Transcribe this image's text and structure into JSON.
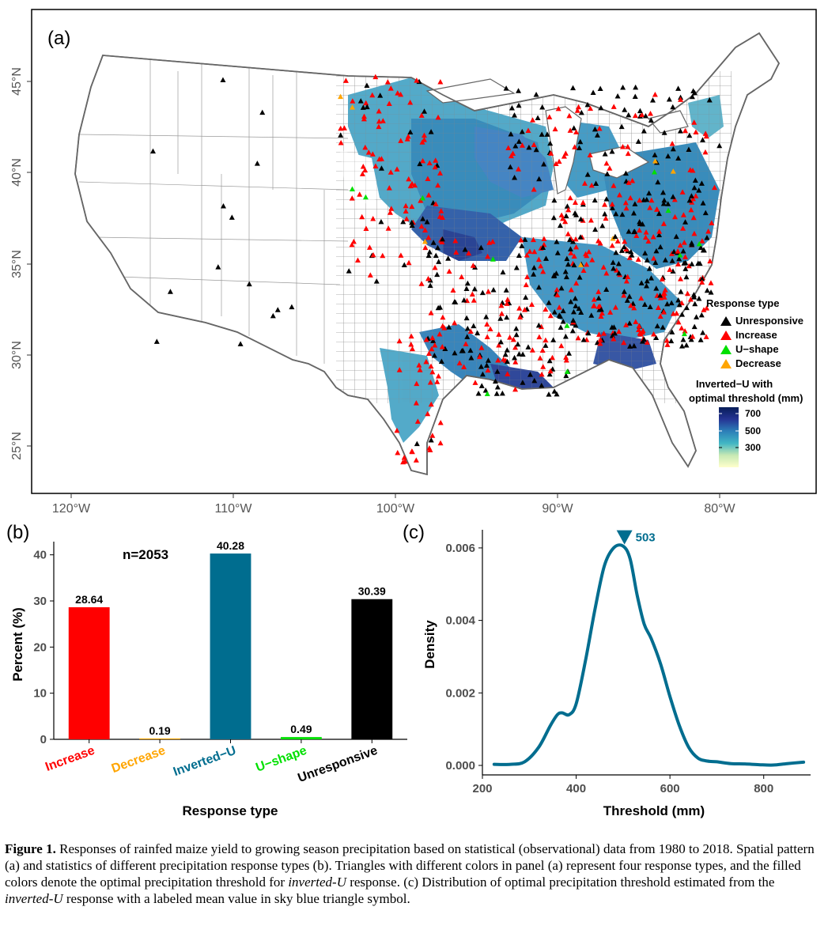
{
  "panel_a": {
    "panel_label": "(a)",
    "lon_ticks": [
      "120°W",
      "110°W",
      "100°W",
      "90°W",
      "80°W"
    ],
    "lat_ticks": [
      "45°N",
      "40°N",
      "35°N",
      "30°N",
      "25°N"
    ],
    "legend_response": {
      "title": "Response type",
      "items": [
        {
          "label": "Unresponsive",
          "color": "#000000"
        },
        {
          "label": "Increase",
          "color": "#ff0000"
        },
        {
          "label": "U−shape",
          "color": "#00e000"
        },
        {
          "label": "Decrease",
          "color": "#ffa500"
        }
      ]
    },
    "legend_threshold": {
      "title_line1": "Inverted−U with",
      "title_line2": "optimal threshold (mm)",
      "ticks": [
        "700",
        "500",
        "300"
      ],
      "colors": [
        "#ffffcc",
        "#a1dab4",
        "#41b6c4",
        "#2c7fb8",
        "#253494",
        "#081d58"
      ]
    }
  },
  "chart_data": [
    {
      "type": "bar",
      "panel_label": "(b)",
      "annotation": "n=2053",
      "categories": [
        "Increase",
        "Decrease",
        "Inverted−U",
        "U−shape",
        "Unresponsive"
      ],
      "values": [
        28.64,
        0.19,
        40.28,
        0.49,
        30.39
      ],
      "value_labels": [
        "28.64",
        "0.19",
        "40.28",
        "0.49",
        "30.39"
      ],
      "colors": [
        "#ff0000",
        "#ffa500",
        "#006d8f",
        "#00e000",
        "#000000"
      ],
      "xlabel": "Response type",
      "ylabel": "Percent (%)",
      "ylim": [
        0,
        42
      ],
      "yticks": [
        0,
        10,
        20,
        30,
        40
      ]
    },
    {
      "type": "line",
      "panel_label": "(c)",
      "xlabel": "Threshold (mm)",
      "ylabel": "Density",
      "xlim": [
        200,
        900
      ],
      "ylim": [
        0,
        0.0065
      ],
      "xticks": [
        200,
        400,
        600,
        800
      ],
      "yticks": [
        "0.000",
        "0.002",
        "0.004",
        "0.006"
      ],
      "line_color": "#006d8f",
      "mean_label": "503",
      "mean_value": 503,
      "x": [
        225,
        260,
        290,
        320,
        345,
        360,
        370,
        385,
        400,
        420,
        440,
        460,
        480,
        500,
        515,
        530,
        545,
        560,
        580,
        600,
        620,
        640,
        660,
        680,
        700,
        730,
        760,
        790,
        820,
        850,
        885
      ],
      "y": [
        3e-05,
        3e-05,
        0.0001,
        0.0005,
        0.0011,
        0.0014,
        0.00145,
        0.0014,
        0.0017,
        0.0029,
        0.0043,
        0.0055,
        0.006,
        0.00605,
        0.0057,
        0.0047,
        0.0039,
        0.0035,
        0.0028,
        0.0019,
        0.0011,
        0.0005,
        0.0002,
        0.00012,
        0.0001,
        5e-05,
        4e-05,
        2e-05,
        1e-05,
        5e-05,
        9e-05
      ]
    }
  ],
  "caption": {
    "fig_label": "Figure 1.",
    "text_1": " Responses of rainfed maize yield to growing season precipitation based on statistical (observational) data from 1980 to 2018. Spatial pattern (a) and statistics of different precipitation response types (b). Triangles with different colors in panel (a) represent four response types, and the filled colors denote the optimal precipitation threshold for ",
    "italic_1": "inverted-U",
    "text_2": " response. (c) Distribution of optimal precipitation threshold estimated from the ",
    "italic_2": "inverted-U",
    "text_3": " response with a labeled mean value in sky blue triangle symbol."
  }
}
